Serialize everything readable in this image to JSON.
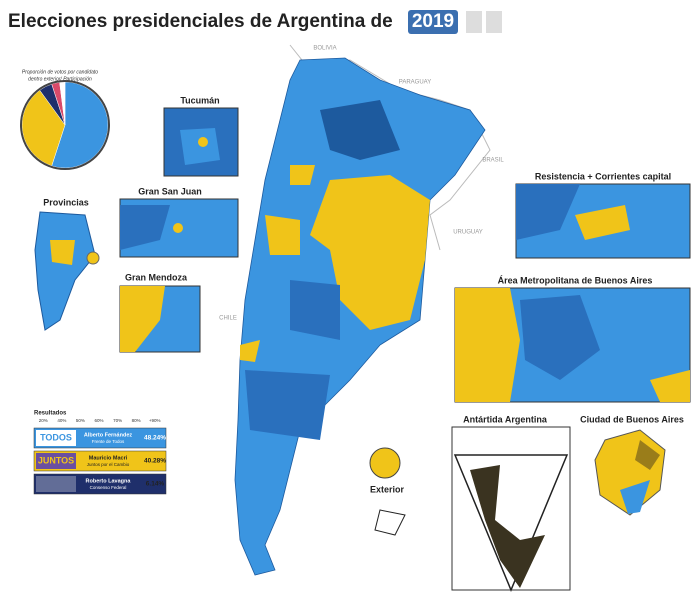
{
  "header": {
    "title": "Elecciones presidenciales de Argentina de",
    "year": "2019"
  },
  "countries": [
    "BOLIVIA",
    "PARAGUAY",
    "BRASIL",
    "URUGUAY",
    "CHILE"
  ],
  "pie": {
    "caption": [
      "Proporción de votos por candidato",
      "dentro exterior/ Participación"
    ],
    "values": [
      55,
      35,
      5,
      3,
      2
    ],
    "colors": [
      "#3b95e0",
      "#f0c419",
      "#1f2f6b",
      "#d94a6a",
      "#ffffff"
    ]
  },
  "insets": {
    "tucuman": "Tucumán",
    "provincias": "Provincias",
    "san_juan": "Gran San Juan",
    "mendoza": "Gran Mendoza",
    "resistencia": "Resistencia + Corrientes capital",
    "amba": "Área Metropolitana de Buenos Aires",
    "antartida": "Antártida Argentina",
    "caba": "Ciudad de Buenos Aires",
    "exterior": "Exterior"
  },
  "legend": {
    "title": "Resultados",
    "scale": [
      "20%",
      "40%",
      "50%",
      "60%",
      "70%",
      "80%",
      "+90%"
    ],
    "candidates": [
      {
        "logo": "TODOS",
        "name": "Alberto Fernández",
        "party": "Frente de Todos",
        "result": "48.24%",
        "color": "#3b95e0"
      },
      {
        "logo": "JUNTOS",
        "name": "Mauricio Macri",
        "party": "Juntos por el Cambio",
        "result": "40.28%",
        "color": "#f0c419"
      },
      {
        "logo": "",
        "name": "Roberto Lavagna",
        "party": "Consenso Federal",
        "result": "6.14%",
        "color": "#1f2f6b"
      }
    ]
  }
}
